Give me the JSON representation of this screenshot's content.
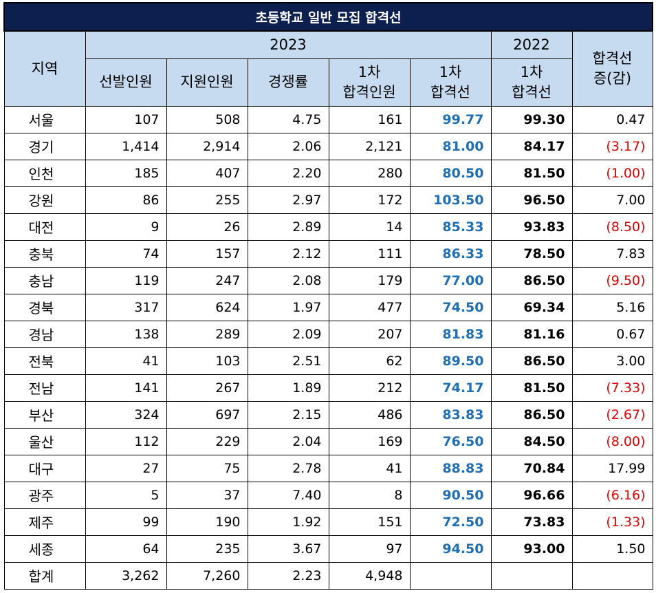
{
  "title": "초등학교 일반 모집 합격선",
  "headers": {
    "region": "지역",
    "year2023": "2023",
    "year2022": "2022",
    "change": [
      "합격선",
      "증(감)"
    ],
    "selected": "선발인원",
    "applicants": "지원인원",
    "competition": "경쟁률",
    "first_passers": [
      "1차",
      "합격인원"
    ],
    "first_cutoff": [
      "1차",
      "합격선"
    ],
    "first_cutoff_2022": [
      "1차",
      "합격선"
    ]
  },
  "rows": [
    {
      "region": "서울",
      "selected": "107",
      "applicants": "508",
      "competition": "4.75",
      "passers": "161",
      "cutoff2023": "99.77",
      "cutoff2022": "99.30",
      "change": "0.47",
      "neg": false
    },
    {
      "region": "경기",
      "selected": "1,414",
      "applicants": "2,914",
      "competition": "2.06",
      "passers": "2,121",
      "cutoff2023": "81.00",
      "cutoff2022": "84.17",
      "change": "(3.17)",
      "neg": true
    },
    {
      "region": "인천",
      "selected": "185",
      "applicants": "407",
      "competition": "2.20",
      "passers": "280",
      "cutoff2023": "80.50",
      "cutoff2022": "81.50",
      "change": "(1.00)",
      "neg": true
    },
    {
      "region": "강원",
      "selected": "86",
      "applicants": "255",
      "competition": "2.97",
      "passers": "172",
      "cutoff2023": "103.50",
      "cutoff2022": "96.50",
      "change": "7.00",
      "neg": false
    },
    {
      "region": "대전",
      "selected": "9",
      "applicants": "26",
      "competition": "2.89",
      "passers": "14",
      "cutoff2023": "85.33",
      "cutoff2022": "93.83",
      "change": "(8.50)",
      "neg": true
    },
    {
      "region": "충북",
      "selected": "74",
      "applicants": "157",
      "competition": "2.12",
      "passers": "111",
      "cutoff2023": "86.33",
      "cutoff2022": "78.50",
      "change": "7.83",
      "neg": false
    },
    {
      "region": "충남",
      "selected": "119",
      "applicants": "247",
      "competition": "2.08",
      "passers": "179",
      "cutoff2023": "77.00",
      "cutoff2022": "86.50",
      "change": "(9.50)",
      "neg": true
    },
    {
      "region": "경북",
      "selected": "317",
      "applicants": "624",
      "competition": "1.97",
      "passers": "477",
      "cutoff2023": "74.50",
      "cutoff2022": "69.34",
      "change": "5.16",
      "neg": false
    },
    {
      "region": "경남",
      "selected": "138",
      "applicants": "289",
      "competition": "2.09",
      "passers": "207",
      "cutoff2023": "81.83",
      "cutoff2022": "81.16",
      "change": "0.67",
      "neg": false
    },
    {
      "region": "전북",
      "selected": "41",
      "applicants": "103",
      "competition": "2.51",
      "passers": "62",
      "cutoff2023": "89.50",
      "cutoff2022": "86.50",
      "change": "3.00",
      "neg": false
    },
    {
      "region": "전남",
      "selected": "141",
      "applicants": "267",
      "competition": "1.89",
      "passers": "212",
      "cutoff2023": "74.17",
      "cutoff2022": "81.50",
      "change": "(7.33)",
      "neg": true
    },
    {
      "region": "부산",
      "selected": "324",
      "applicants": "697",
      "competition": "2.15",
      "passers": "486",
      "cutoff2023": "83.83",
      "cutoff2022": "86.50",
      "change": "(2.67)",
      "neg": true
    },
    {
      "region": "울산",
      "selected": "112",
      "applicants": "229",
      "competition": "2.04",
      "passers": "169",
      "cutoff2023": "76.50",
      "cutoff2022": "84.50",
      "change": "(8.00)",
      "neg": true
    },
    {
      "region": "대구",
      "selected": "27",
      "applicants": "75",
      "competition": "2.78",
      "passers": "41",
      "cutoff2023": "88.83",
      "cutoff2022": "70.84",
      "change": "17.99",
      "neg": false
    },
    {
      "region": "광주",
      "selected": "5",
      "applicants": "37",
      "competition": "7.40",
      "passers": "8",
      "cutoff2023": "90.50",
      "cutoff2022": "96.66",
      "change": "(6.16)",
      "neg": true
    },
    {
      "region": "제주",
      "selected": "99",
      "applicants": "190",
      "competition": "1.92",
      "passers": "151",
      "cutoff2023": "72.50",
      "cutoff2022": "73.83",
      "change": "(1.33)",
      "neg": true
    },
    {
      "region": "세종",
      "selected": "64",
      "applicants": "235",
      "competition": "3.67",
      "passers": "97",
      "cutoff2023": "94.50",
      "cutoff2022": "93.00",
      "change": "1.50",
      "neg": false
    },
    {
      "region": "합계",
      "selected": "3,262",
      "applicants": "7,260",
      "competition": "2.23",
      "passers": "4,948",
      "cutoff2023": "",
      "cutoff2022": "",
      "change": "",
      "neg": false
    }
  ],
  "colors": {
    "title_bg": "#0d1f4e",
    "header_bg": "#c7dbf0",
    "cutoff_blue": "#1f6fb5",
    "negative_red": "#e00000"
  }
}
